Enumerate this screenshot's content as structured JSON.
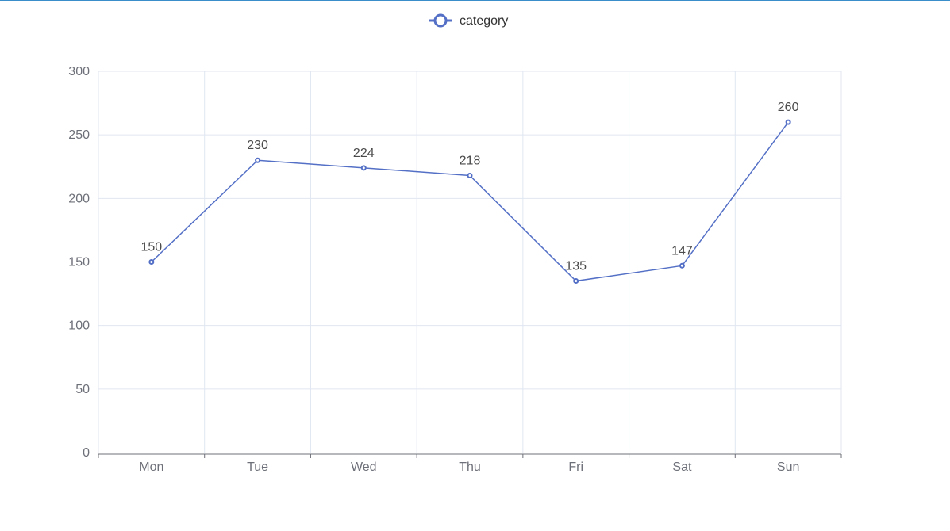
{
  "chart_data": {
    "type": "line",
    "categories": [
      "Mon",
      "Tue",
      "Wed",
      "Thu",
      "Fri",
      "Sat",
      "Sun"
    ],
    "series": [
      {
        "name": "category",
        "values": [
          150,
          230,
          224,
          218,
          135,
          147,
          260
        ]
      }
    ],
    "ylim": [
      0,
      300
    ],
    "y_ticks": [
      0,
      50,
      100,
      150,
      200,
      250,
      300
    ],
    "grid": true,
    "legend_position": "top-center",
    "show_data_labels": true,
    "colors": {
      "line": "#5470c6",
      "grid": "#e0e6f1",
      "axis": "#6e7079",
      "label": "#4a4a4a"
    }
  }
}
